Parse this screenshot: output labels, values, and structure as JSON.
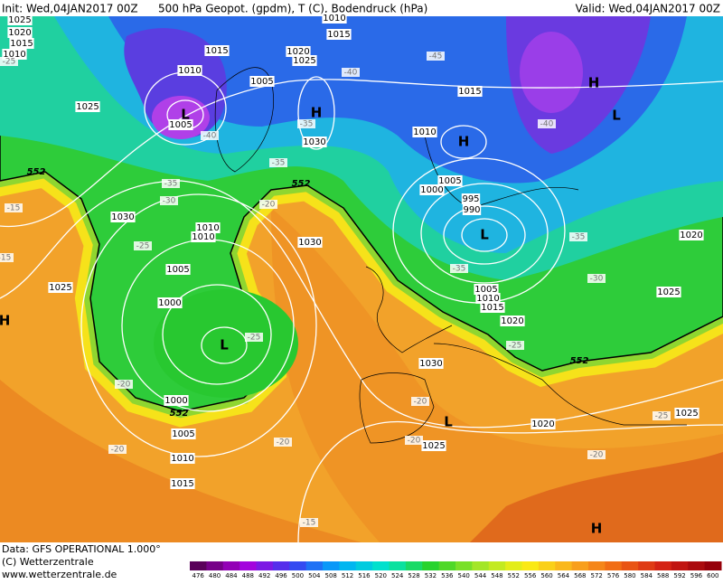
{
  "header": {
    "init": "Init: Wed,04JAN2017 00Z",
    "title": "500 hPa Geopot. (gpdm), T (C), Bodendruck (hPa)",
    "valid": "Valid: Wed,04JAN2017 00Z"
  },
  "footer": {
    "data": "Data: GFS OPERATIONAL 1.000°",
    "copyright": "(C) Wetterzentrale",
    "url": "www.wetterzentrale.de"
  },
  "legend": {
    "values": [
      476,
      480,
      484,
      488,
      492,
      496,
      500,
      504,
      508,
      512,
      516,
      520,
      524,
      528,
      532,
      536,
      540,
      544,
      548,
      552,
      556,
      560,
      564,
      568,
      572,
      576,
      580,
      584,
      588,
      592,
      596,
      600
    ]
  },
  "map": {
    "pressure_labels": [
      "1025",
      "1020",
      "1015",
      "1010",
      "1010",
      "1015",
      "1015",
      "1020",
      "1025",
      "1010",
      "1005",
      "1025",
      "1005",
      "1030",
      "1010",
      "1015",
      "1005",
      "1000",
      "995",
      "990",
      "1030",
      "1010",
      "1010",
      "1030",
      "1005",
      "1025",
      "1000",
      "1005",
      "1010",
      "1015",
      "1020",
      "1020",
      "1025",
      "1030",
      "1000",
      "1005",
      "1010",
      "1015",
      "1025",
      "1020",
      "1025"
    ],
    "centers": [
      "L",
      "H",
      "H",
      "H",
      "L",
      "L",
      "L",
      "H",
      "L",
      "H"
    ],
    "temperatures": [
      "-45",
      "-40",
      "-40",
      "-40",
      "-35",
      "-35",
      "-35",
      "-30",
      "-25",
      "-20",
      "-15",
      "-15",
      "-35",
      "-35",
      "-30",
      "-25",
      "-25",
      "-20",
      "-20",
      "-20",
      "-20",
      "-20",
      "-20",
      "-25",
      "-15",
      "-25"
    ],
    "contour_552": [
      "552",
      "552",
      "552",
      "552"
    ]
  }
}
